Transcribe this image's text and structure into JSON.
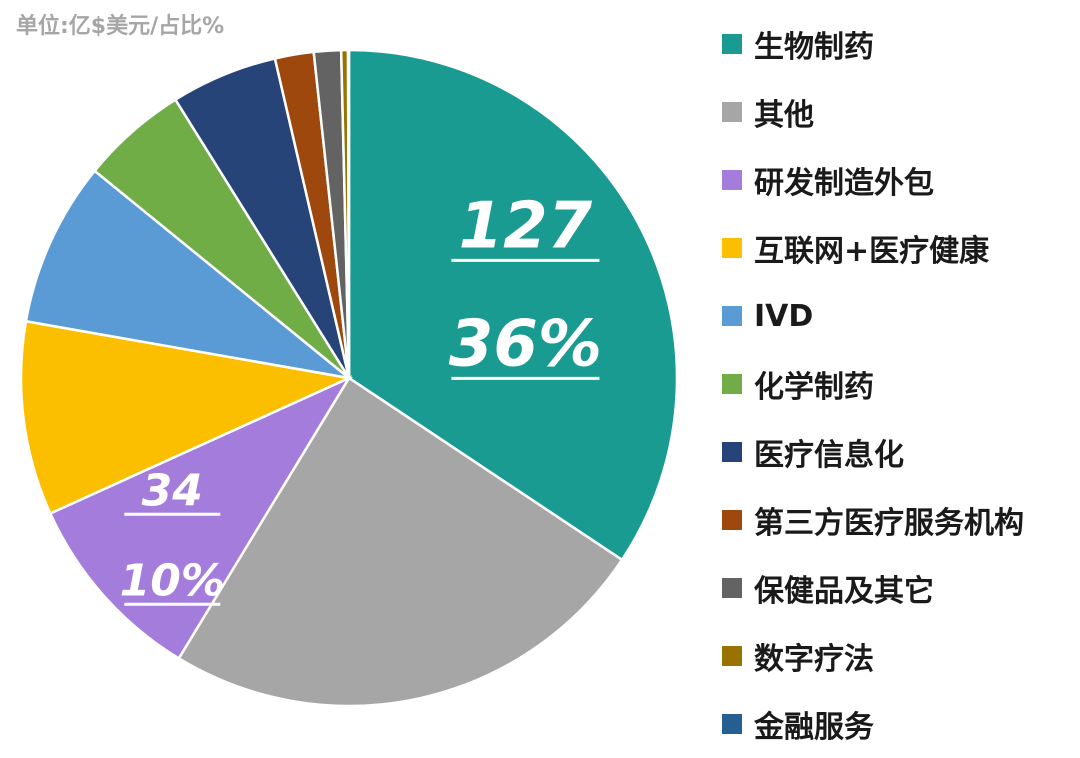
{
  "unit_note": "单位:亿$美元/占比%",
  "chart_data": {
    "type": "pie",
    "title": "",
    "start_angle_deg": 0,
    "direction": "clockwise",
    "legend_position": "right",
    "slices": [
      {
        "label": "生物制药",
        "value": 36,
        "color": "#1a9b91",
        "labels": [
          "127",
          "36%"
        ]
      },
      {
        "label": "其他",
        "value": 25.5,
        "color": "#a6a6a6"
      },
      {
        "label": "研发制造外包",
        "value": 10,
        "color": "#a47ddc",
        "labels": [
          "34",
          "10%"
        ]
      },
      {
        "label": "互联网+医疗健康",
        "value": 10,
        "color": "#fcbf00"
      },
      {
        "label": "IVD",
        "value": 8.5,
        "color": "#5b9bd5"
      },
      {
        "label": "化学制药",
        "value": 5.5,
        "color": "#70ad47"
      },
      {
        "label": "医疗信息化",
        "value": 5.5,
        "color": "#264478"
      },
      {
        "label": "第三方医疗服务机构",
        "value": 2,
        "color": "#9e480e"
      },
      {
        "label": "保健品及其它",
        "value": 1.4,
        "color": "#636363"
      },
      {
        "label": "数字疗法",
        "value": 0.35,
        "color": "#997300"
      },
      {
        "label": "金融服务",
        "value": 0.05,
        "color": "#255e91"
      }
    ]
  }
}
